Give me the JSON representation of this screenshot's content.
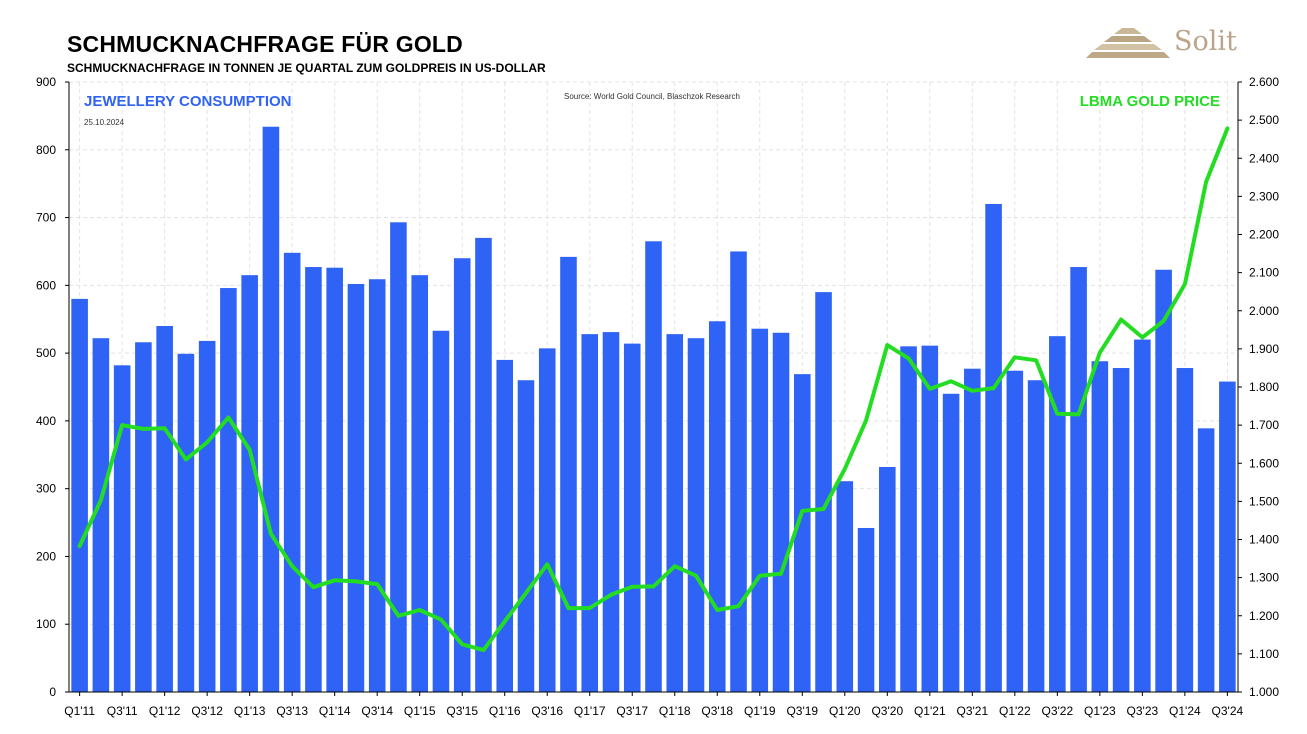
{
  "header": {
    "title": "SCHMUCKNACHFRAGE FÜR GOLD",
    "subtitle": "SCHMUCKNACHFRAGE IN TONNEN JE QUARTAL ZUM GOLDPREIS IN US-DOLLAR",
    "logo_text": "Solit"
  },
  "colors": {
    "bars": "#2f63f5",
    "line": "#22dd22",
    "grid": "#e3e3e3"
  },
  "chart_data": {
    "type": "bar",
    "annotations": {
      "series_left": "JEWELLERY CONSUMPTION",
      "date": "25.10.2024",
      "source": "Source:  World  Gold Council, Blaschzok  Research",
      "series_right": "LBMA GOLD PRICE"
    },
    "categories": [
      "Q1'11",
      "Q2'11",
      "Q3'11",
      "Q4'11",
      "Q1'12",
      "Q2'12",
      "Q3'12",
      "Q4'12",
      "Q1'13",
      "Q2'13",
      "Q3'13",
      "Q4'13",
      "Q1'14",
      "Q2'14",
      "Q3'14",
      "Q4'14",
      "Q1'15",
      "Q2'15",
      "Q3'15",
      "Q4'15",
      "Q1'16",
      "Q2'16",
      "Q3'16",
      "Q4'16",
      "Q1'17",
      "Q2'17",
      "Q3'17",
      "Q4'17",
      "Q1'18",
      "Q2'18",
      "Q3'18",
      "Q4'18",
      "Q1'19",
      "Q2'19",
      "Q3'19",
      "Q4'19",
      "Q1'20",
      "Q2'20",
      "Q3'20",
      "Q4'20",
      "Q1'21",
      "Q2'21",
      "Q3'21",
      "Q4'21",
      "Q1'22",
      "Q2'22",
      "Q3'22",
      "Q4'22",
      "Q1'23",
      "Q2'23",
      "Q3'23",
      "Q4'23",
      "Q1'24",
      "Q2'24",
      "Q3'24"
    ],
    "x_tick_labels": [
      "Q1'11",
      "Q3'11",
      "Q1'12",
      "Q3'12",
      "Q1'13",
      "Q3'13",
      "Q1'14",
      "Q3'14",
      "Q1'15",
      "Q3'15",
      "Q1'16",
      "Q3'16",
      "Q1'17",
      "Q3'17",
      "Q1'18",
      "Q3'18",
      "Q1'19",
      "Q3'19",
      "Q1'20",
      "Q3'20",
      "Q1'21",
      "Q3'21",
      "Q1'22",
      "Q3'22",
      "Q1'23",
      "Q3'23",
      "Q1'24",
      "Q3'24"
    ],
    "series": [
      {
        "name": "JEWELLERY CONSUMPTION",
        "axis": "left",
        "type": "bar",
        "values": [
          580,
          522,
          482,
          516,
          540,
          499,
          518,
          596,
          615,
          834,
          648,
          627,
          626,
          602,
          609,
          693,
          615,
          533,
          640,
          670,
          490,
          460,
          507,
          642,
          528,
          531,
          514,
          665,
          528,
          522,
          547,
          650,
          536,
          530,
          469,
          590,
          311,
          242,
          332,
          510,
          511,
          440,
          477,
          720,
          474,
          460,
          525,
          627,
          488,
          478,
          520,
          623,
          478,
          389,
          458
        ]
      },
      {
        "name": "LBMA GOLD PRICE",
        "axis": "right",
        "type": "line",
        "values": [
          1383,
          1503,
          1700,
          1690,
          1692,
          1610,
          1655,
          1720,
          1635,
          1415,
          1330,
          1275,
          1293,
          1290,
          1283,
          1200,
          1215,
          1190,
          1125,
          1110,
          1185,
          1260,
          1335,
          1220,
          1220,
          1255,
          1276,
          1277,
          1330,
          1305,
          1215,
          1225,
          1305,
          1310,
          1475,
          1480,
          1585,
          1712,
          1910,
          1875,
          1795,
          1815,
          1790,
          1797,
          1878,
          1870,
          1730,
          1728,
          1890,
          1977,
          1930,
          1973,
          2070,
          2338,
          2478
        ]
      }
    ],
    "y_left": {
      "min": 0,
      "max": 900,
      "ticks": [
        "0",
        "100",
        "200",
        "300",
        "400",
        "500",
        "600",
        "700",
        "800",
        "900"
      ]
    },
    "y_right": {
      "min": 1000,
      "max": 2600,
      "ticks": [
        "1.000",
        "1.100",
        "1.200",
        "1.300",
        "1.400",
        "1.500",
        "1.600",
        "1.700",
        "1.800",
        "1.900",
        "2.000",
        "2.100",
        "2.200",
        "2.300",
        "2.400",
        "2.500",
        "2.600"
      ]
    },
    "grid": true,
    "legend": "none"
  }
}
